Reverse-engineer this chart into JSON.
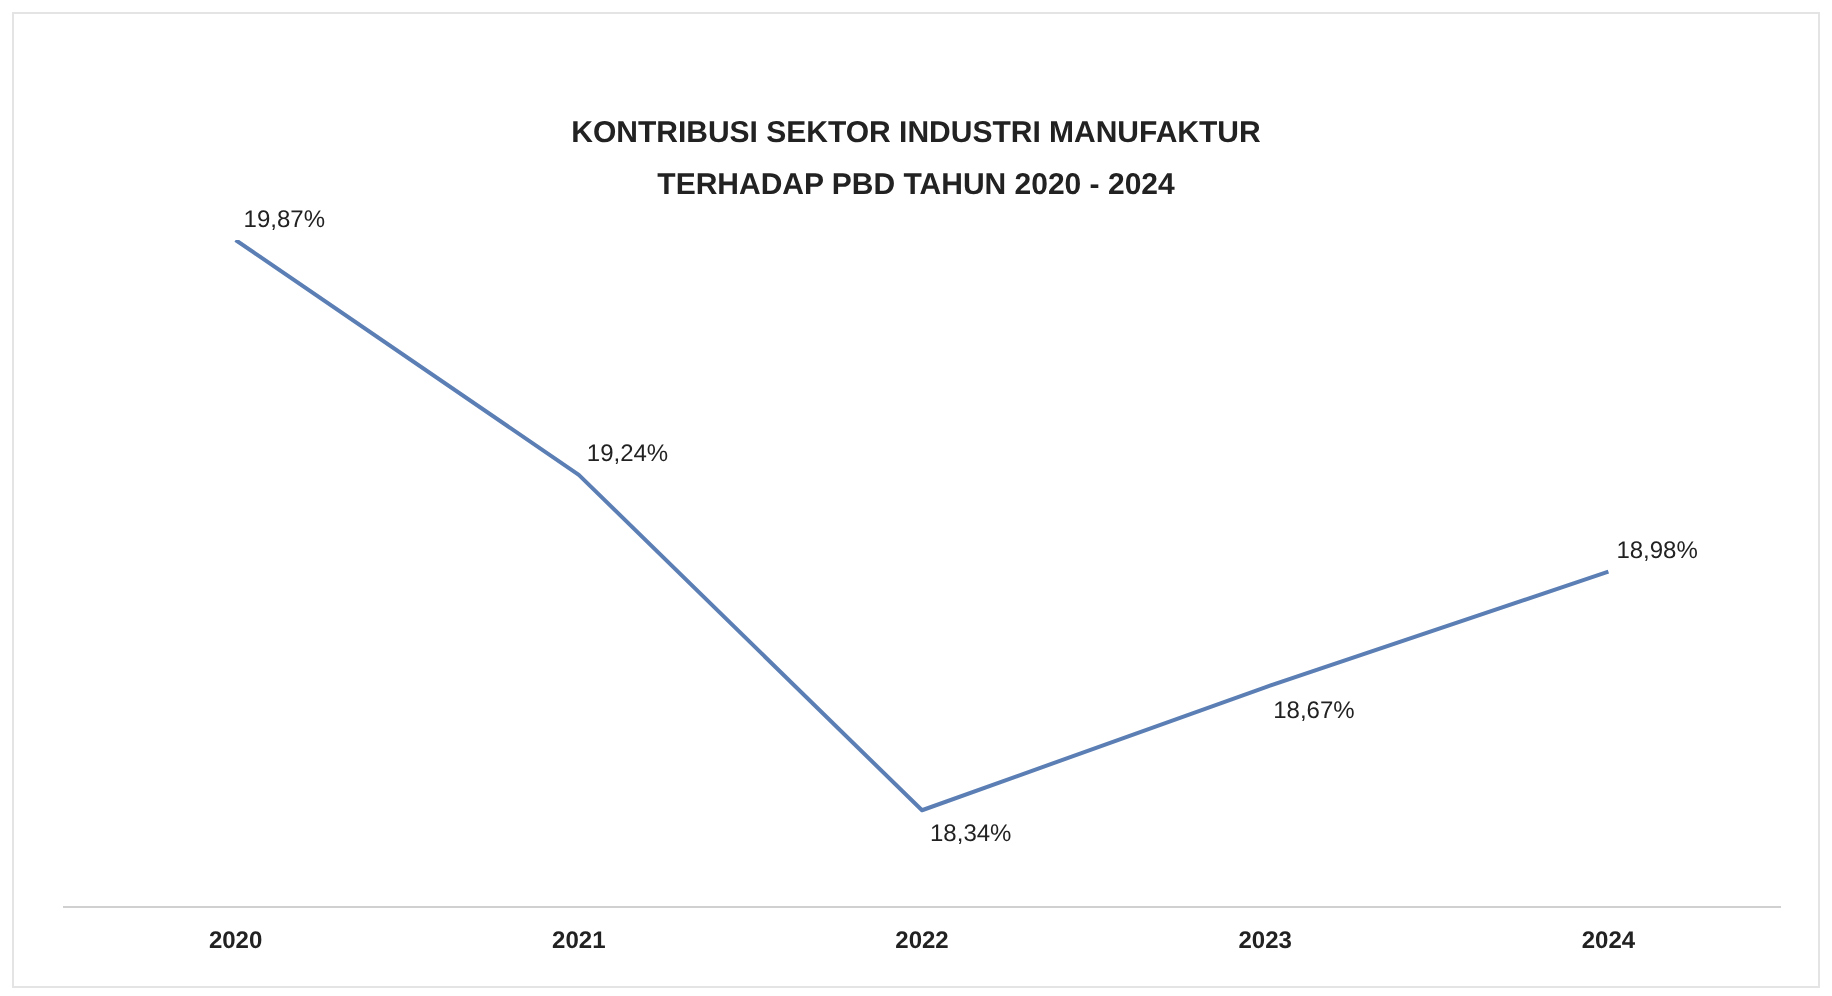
{
  "chart_data": {
    "type": "line",
    "title": "KONTRIBUSI SEKTOR INDUSTRI MANUFAKTUR\nTERHADAP PBD TAHUN 2020 - 2024",
    "categories": [
      "2020",
      "2021",
      "2022",
      "2023",
      "2024"
    ],
    "series": [
      {
        "color": "#5b7fb5",
        "values": [
          19.87,
          19.24,
          18.34,
          18.67,
          18.98
        ],
        "value_labels": [
          "19,87%",
          "19,24%",
          "18,34%",
          "18,67%",
          "18,98%"
        ]
      }
    ],
    "legend": false,
    "grid": false,
    "line_style": "solid"
  }
}
